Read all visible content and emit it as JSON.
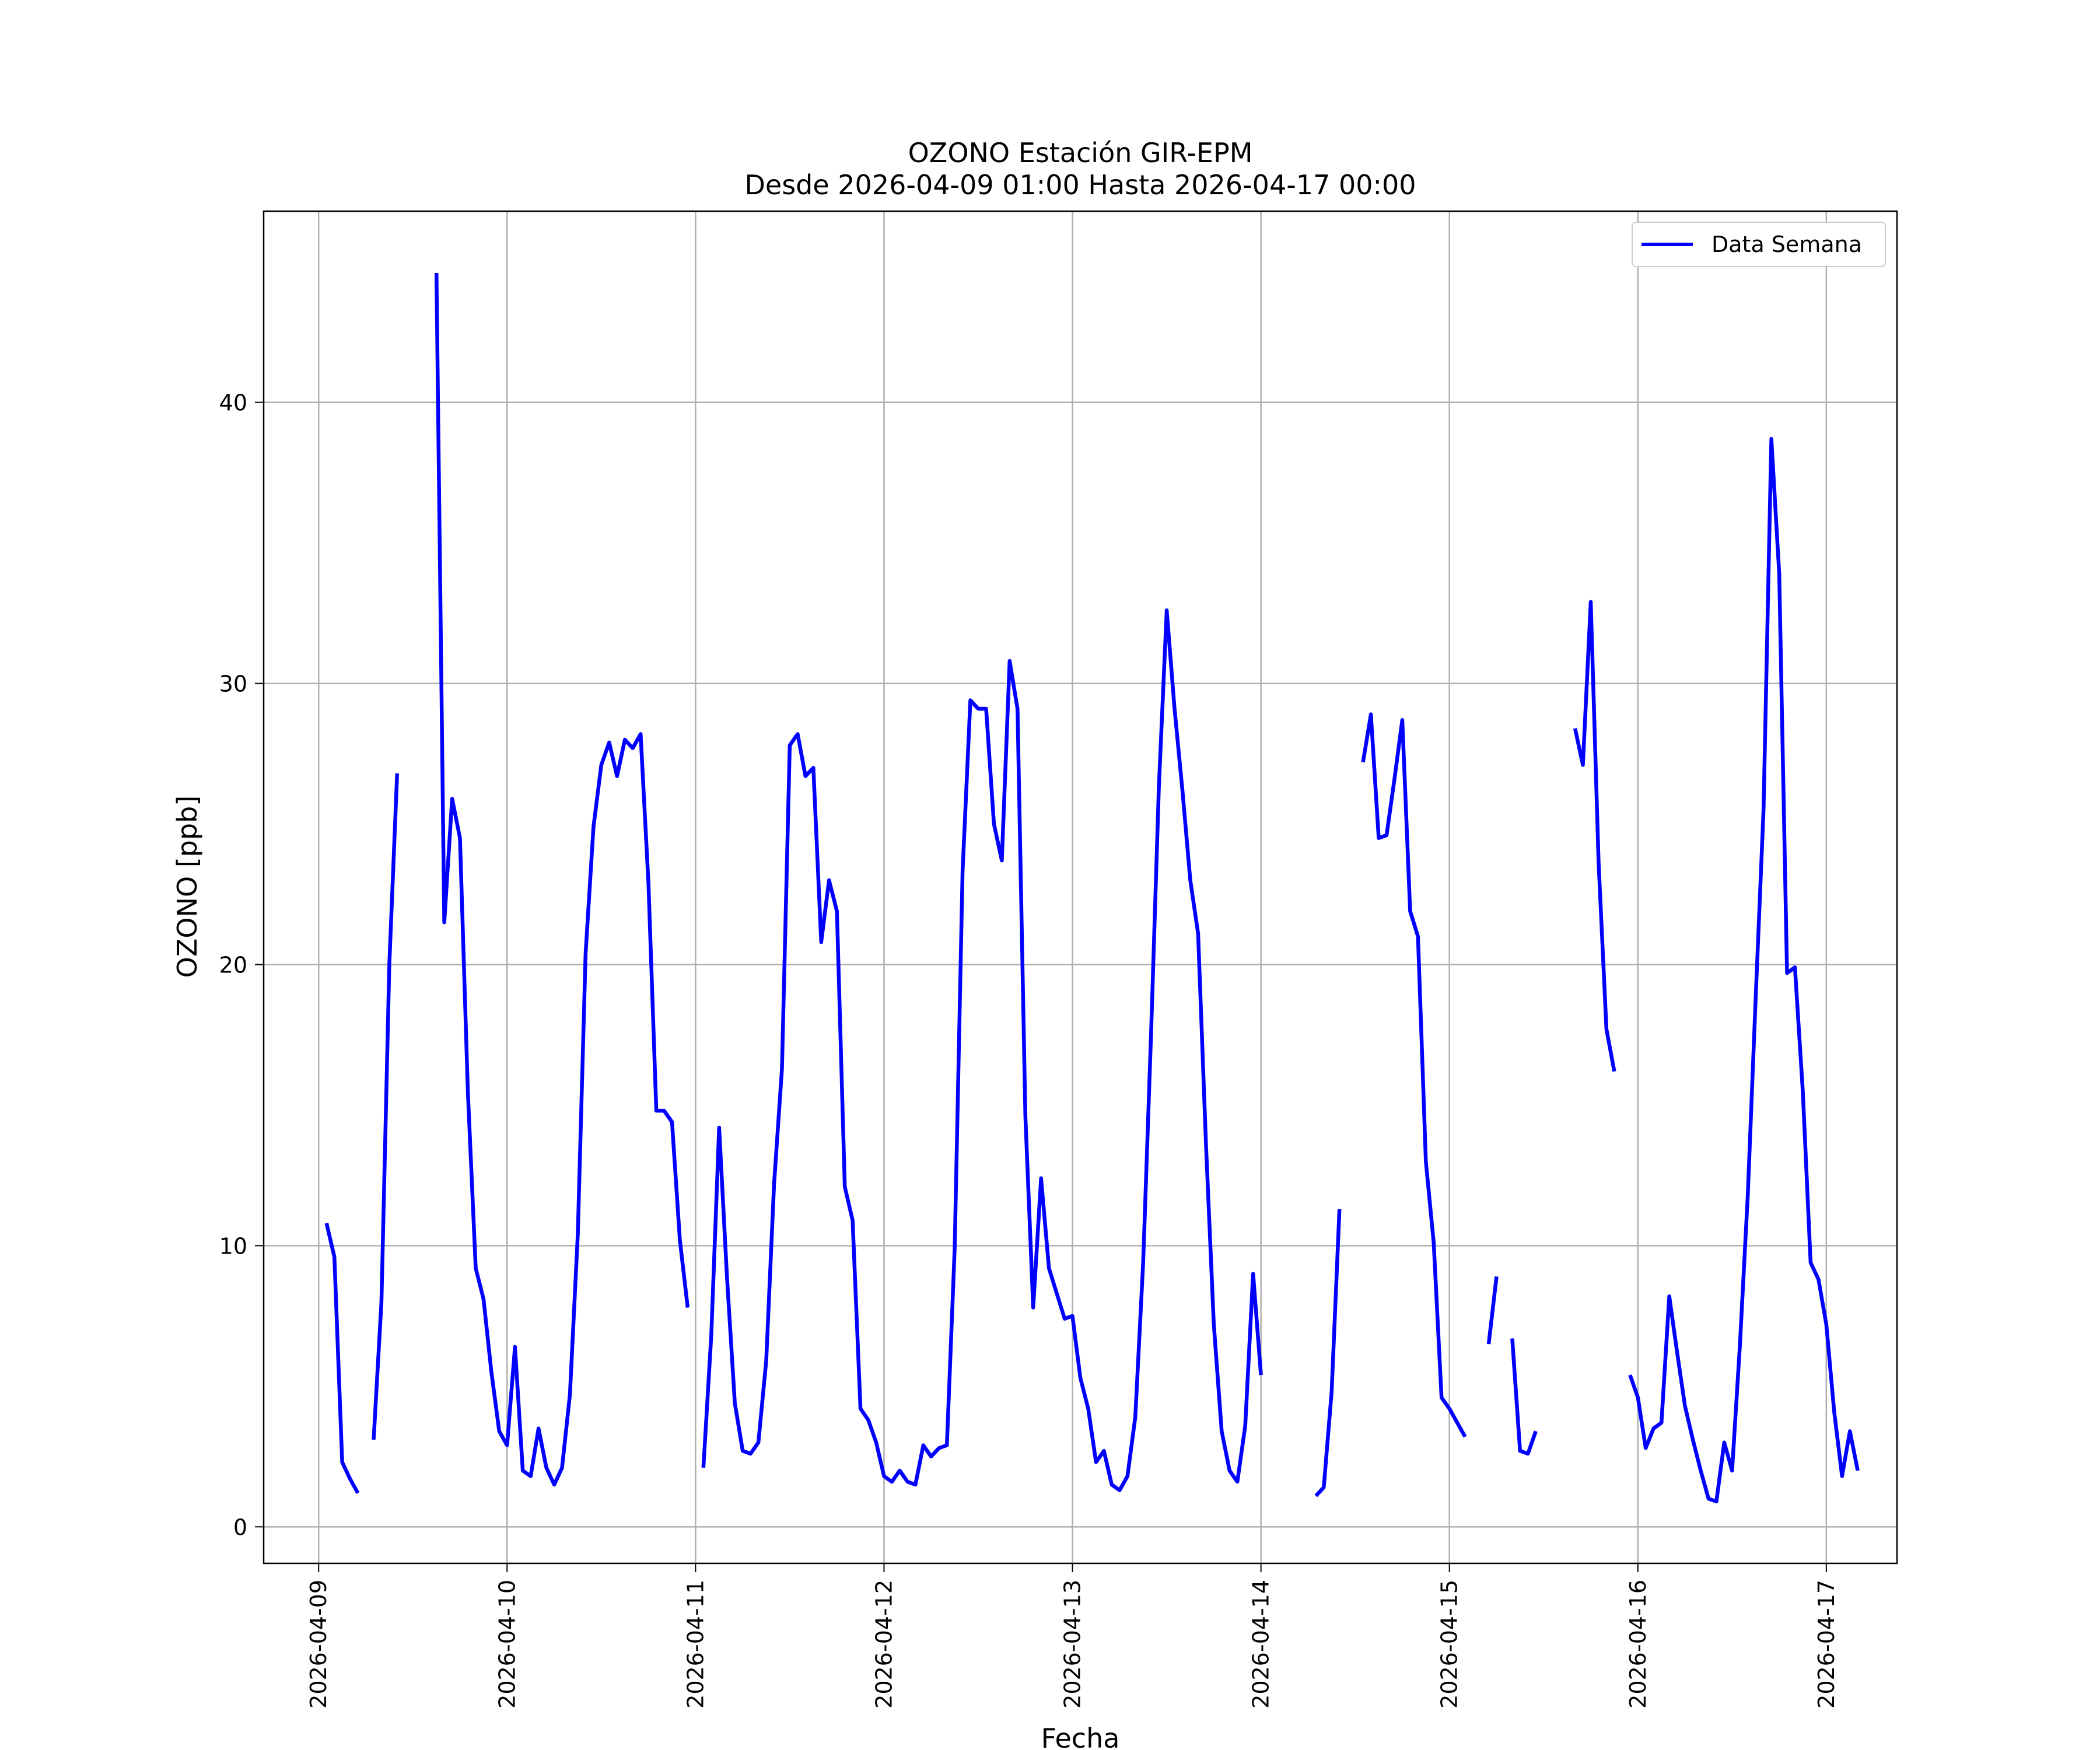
{
  "chart_data": {
    "type": "line",
    "title": "OZONO Estación GIR-EPM",
    "subtitle": "Desde 2026-04-09 01:00 Hasta 2026-04-17 00:00",
    "xlabel": "Fecha",
    "ylabel": "OZONO [ppb]",
    "x_ticks": [
      "2026-04-09",
      "2026-04-10",
      "2026-04-11",
      "2026-04-12",
      "2026-04-13",
      "2026-04-14",
      "2026-04-15",
      "2026-04-16",
      "2026-04-17"
    ],
    "y_ticks": [
      0,
      10,
      20,
      30,
      40
    ],
    "xlim": [
      "2026-04-08 17:00",
      "2026-04-17 09:00"
    ],
    "ylim": [
      -1.3,
      46.8
    ],
    "grid": true,
    "legend_position": "top-right",
    "colors": {
      "series": "#0000ff"
    },
    "series": [
      {
        "name": "Data Semana",
        "x_start": "2026-04-09 01:00",
        "x_step_hours": 1,
        "values": [
          10.8,
          9.6,
          2.3,
          1.7,
          1.2,
          null,
          3.1,
          8.0,
          20.0,
          26.8,
          null,
          null,
          null,
          null,
          44.6,
          21.5,
          25.9,
          24.5,
          15.5,
          9.2,
          8.1,
          5.5,
          3.4,
          2.9,
          6.4,
          2.0,
          1.8,
          3.5,
          2.1,
          1.5,
          2.1,
          4.7,
          10.4,
          20.4,
          24.9,
          27.1,
          27.9,
          26.7,
          28.0,
          27.7,
          28.2,
          22.9,
          14.8,
          14.8,
          14.4,
          10.2,
          7.8,
          null,
          2.1,
          6.8,
          14.2,
          8.9,
          4.4,
          2.7,
          2.6,
          3.0,
          5.9,
          12.2,
          16.3,
          27.8,
          28.2,
          26.7,
          27.0,
          20.8,
          23.0,
          21.9,
          12.1,
          10.9,
          4.2,
          3.8,
          3.0,
          1.8,
          1.6,
          2.0,
          1.6,
          1.5,
          2.9,
          2.5,
          2.8,
          2.9,
          9.9,
          23.3,
          29.4,
          29.1,
          29.1,
          25.0,
          23.7,
          30.8,
          29.1,
          14.6,
          7.8,
          12.4,
          9.2,
          8.3,
          7.4,
          7.5,
          5.3,
          4.2,
          2.3,
          2.7,
          1.5,
          1.3,
          1.8,
          3.9,
          9.4,
          17.5,
          26.3,
          32.6,
          29.1,
          26.2,
          23.0,
          21.1,
          13.6,
          7.2,
          3.4,
          2.0,
          1.6,
          3.6,
          9.0,
          5.4,
          null,
          null,
          null,
          null,
          null,
          null,
          1.1,
          1.4,
          4.8,
          11.3,
          null,
          null,
          27.2,
          28.9,
          24.5,
          24.6,
          26.6,
          28.7,
          21.9,
          21.0,
          13.0,
          10.1,
          4.6,
          4.2,
          3.7,
          3.2,
          null,
          null,
          6.5,
          8.9,
          null,
          6.7,
          2.7,
          2.6,
          3.4,
          null,
          null,
          null,
          null,
          28.4,
          27.1,
          32.9,
          23.6,
          17.7,
          16.2,
          null,
          5.4,
          4.6,
          2.8,
          3.5,
          3.7,
          8.2,
          6.2,
          4.3,
          3.1,
          2.0,
          1.0,
          0.9,
          3.0,
          2.0,
          6.5,
          11.8,
          18.8,
          25.5,
          38.7,
          33.9,
          19.7,
          19.9,
          15.5,
          9.4,
          8.8,
          7.2,
          4.1,
          1.8,
          3.4,
          2.0
        ]
      }
    ]
  }
}
